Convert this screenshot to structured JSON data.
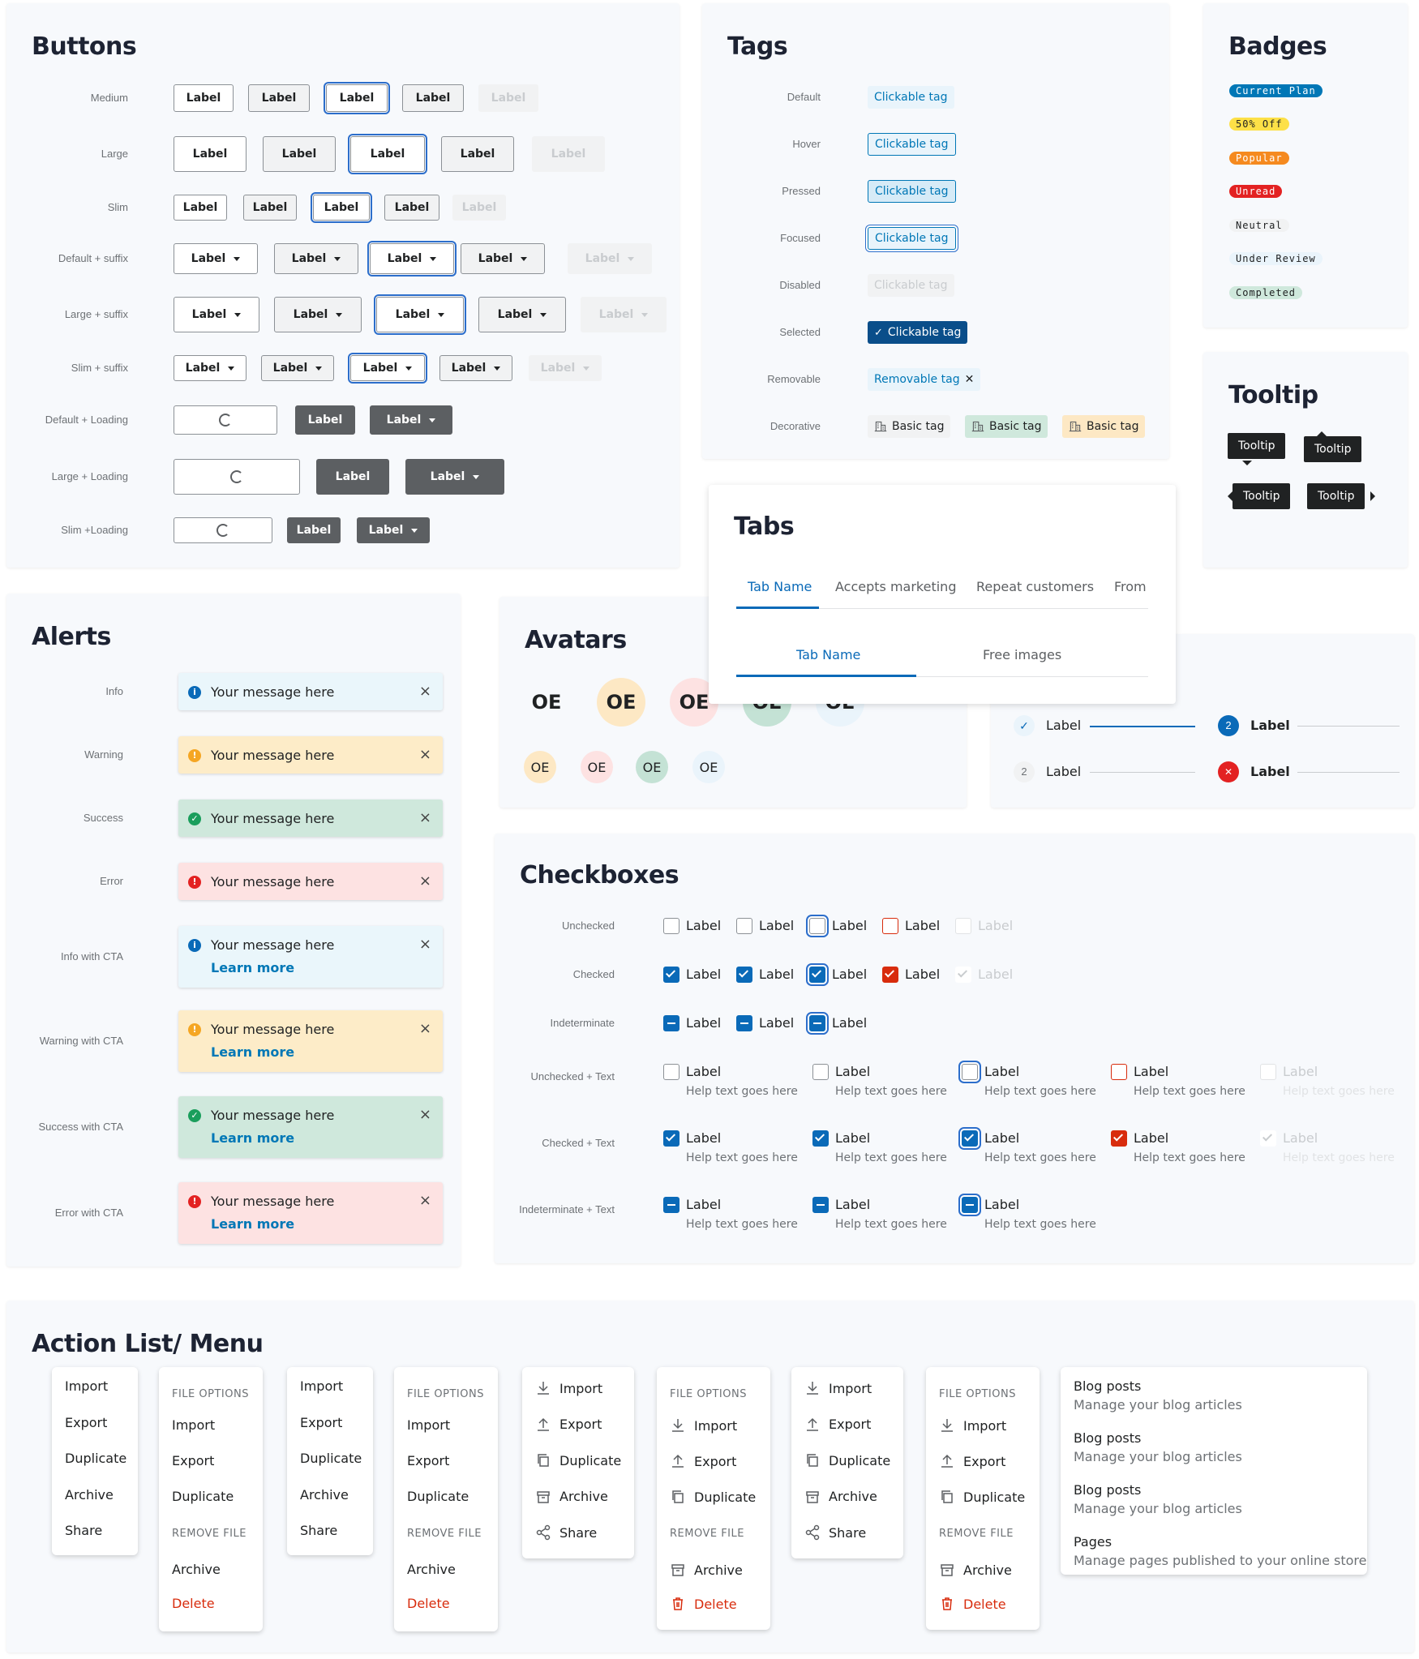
{
  "buttons": {
    "title": "Buttons",
    "label": "Label",
    "rows": [
      "Medium",
      "Large",
      "Slim",
      "Default + suffix",
      "Large + suffix",
      "Slim + suffix",
      "Default + Loading",
      "Large + Loading",
      "Slim +Loading"
    ]
  },
  "tags": {
    "title": "Tags",
    "rows": [
      "Default",
      "Hover",
      "Pressed",
      "Focused",
      "Disabled",
      "Selected",
      "Removable",
      "Decorative"
    ],
    "clickable": "Clickable tag",
    "removable": "Removable tag",
    "basic": "Basic tag",
    "remove_icon": "✕"
  },
  "badges": {
    "title": "Badges",
    "items": [
      "Current Plan",
      "50% Off",
      "Popular",
      "Unread",
      "Neutral",
      "Under Review",
      "Completed"
    ]
  },
  "tooltip": {
    "title": "Tooltip",
    "text": "Tooltip"
  },
  "tabs": {
    "title": "Tabs",
    "row1": [
      "Tab Name",
      "Accepts marketing",
      "Repeat customers",
      "From"
    ],
    "row2": [
      "Tab Name",
      "Free images"
    ]
  },
  "alerts": {
    "title": "Alerts",
    "rows": [
      "Info",
      "Warning",
      "Success",
      "Error",
      "Info with CTA",
      "Warning with CTA",
      "Success with CTA",
      "Error with CTA"
    ],
    "message": "Your message here",
    "cta": "Learn more",
    "close": "×"
  },
  "avatars": {
    "title": "Avatars",
    "initials": "OE"
  },
  "steps": {
    "label": "Label",
    "num2": "2",
    "x": "✕"
  },
  "checkboxes": {
    "title": "Checkboxes",
    "rows": [
      "Unchecked",
      "Checked",
      "Indeterminate",
      "Unchecked + Text",
      "Checked + Text",
      "Indeterminate + Text"
    ],
    "label": "Label",
    "help": "Help text goes here"
  },
  "menu": {
    "title": "Action List/ Menu",
    "simple": [
      "Import",
      "Export",
      "Duplicate",
      "Archive",
      "Share"
    ],
    "file_options": "FILE OPTIONS",
    "remove_file": "REMOVE FILE",
    "archive": "Archive",
    "delete": "Delete",
    "import": "Import",
    "export": "Export",
    "duplicate": "Duplicate",
    "blog": "Blog posts",
    "blog_desc": "Manage your blog articles",
    "pages": "Pages",
    "pages_desc": "Manage pages published to your online store"
  },
  "colors": {
    "primary": "#0a6ab8",
    "error": "#d82c0d",
    "info_bg": "#eaf6fb",
    "warn_bg": "#fdecc8",
    "success_bg": "#cfe8dc",
    "error_bg": "#fde2e2"
  }
}
